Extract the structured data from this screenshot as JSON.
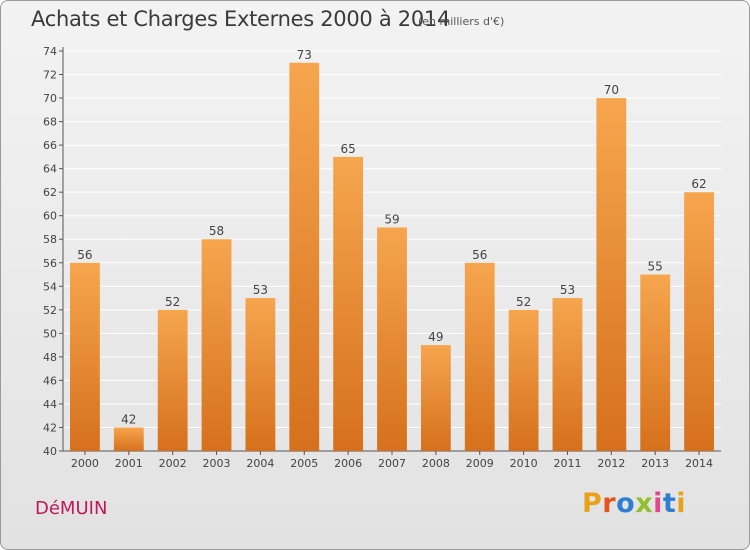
{
  "header": {
    "title": "Achats et Charges Externes 2000 à 2014",
    "subtitle": "(en milliers d'€)"
  },
  "footer": {
    "commune": "DéMUIN",
    "brand": "Proxiti",
    "brand_colors": [
      "#e8a21a",
      "#e5541e",
      "#2e7fd1",
      "#8fbf2a",
      "#e04a8a",
      "#2e7fd1",
      "#e8a21a"
    ]
  },
  "colors": {
    "bar_top": "#f6a64e",
    "bar_bottom": "#d6701c",
    "grid": "#ffffff",
    "commune": "#c2185b"
  },
  "chart_data": {
    "type": "bar",
    "categories": [
      "2000",
      "2001",
      "2002",
      "2003",
      "2004",
      "2005",
      "2006",
      "2007",
      "2008",
      "2009",
      "2010",
      "2011",
      "2012",
      "2013",
      "2014"
    ],
    "values": [
      56,
      42,
      52,
      58,
      53,
      73,
      65,
      59,
      49,
      56,
      52,
      53,
      70,
      55,
      62
    ],
    "title": "Achats et Charges Externes 2000 à 2014",
    "subtitle": "(en milliers d'€)",
    "ylim": [
      40,
      74
    ],
    "y_ticks": [
      40,
      42,
      44,
      46,
      48,
      50,
      52,
      54,
      56,
      58,
      60,
      62,
      64,
      66,
      68,
      70,
      72,
      74
    ],
    "grid": true,
    "data_labels": true
  }
}
